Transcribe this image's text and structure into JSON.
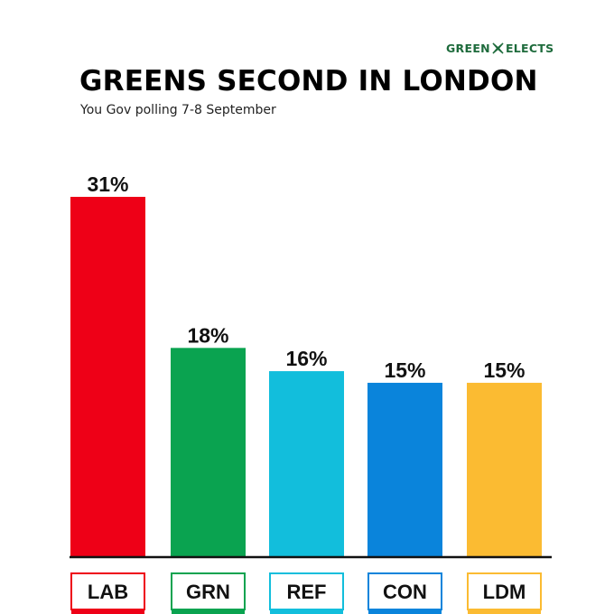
{
  "brand": {
    "left_text": "GREEN",
    "right_text": "ELECTS",
    "icon": "x-ballot-icon",
    "color": "#1e6b3c"
  },
  "header": {
    "title": "GREENS SECOND IN LONDON",
    "subtitle": "You Gov polling 7-8 September"
  },
  "chart_data": {
    "type": "bar",
    "title": "GREENS SECOND IN LONDON",
    "subtitle": "You Gov polling 7-8 September",
    "categories": [
      "LAB",
      "GRN",
      "REF",
      "CON",
      "LDM"
    ],
    "values": [
      31,
      18,
      16,
      15,
      15
    ],
    "value_labels": [
      "31%",
      "18%",
      "16%",
      "15%",
      "15%"
    ],
    "unit": "%",
    "colors": [
      "#ee0017",
      "#0aa350",
      "#12bedc",
      "#0a84db",
      "#fbbb32"
    ],
    "ylim": [
      0,
      31
    ],
    "grid": false,
    "legend": "none"
  }
}
